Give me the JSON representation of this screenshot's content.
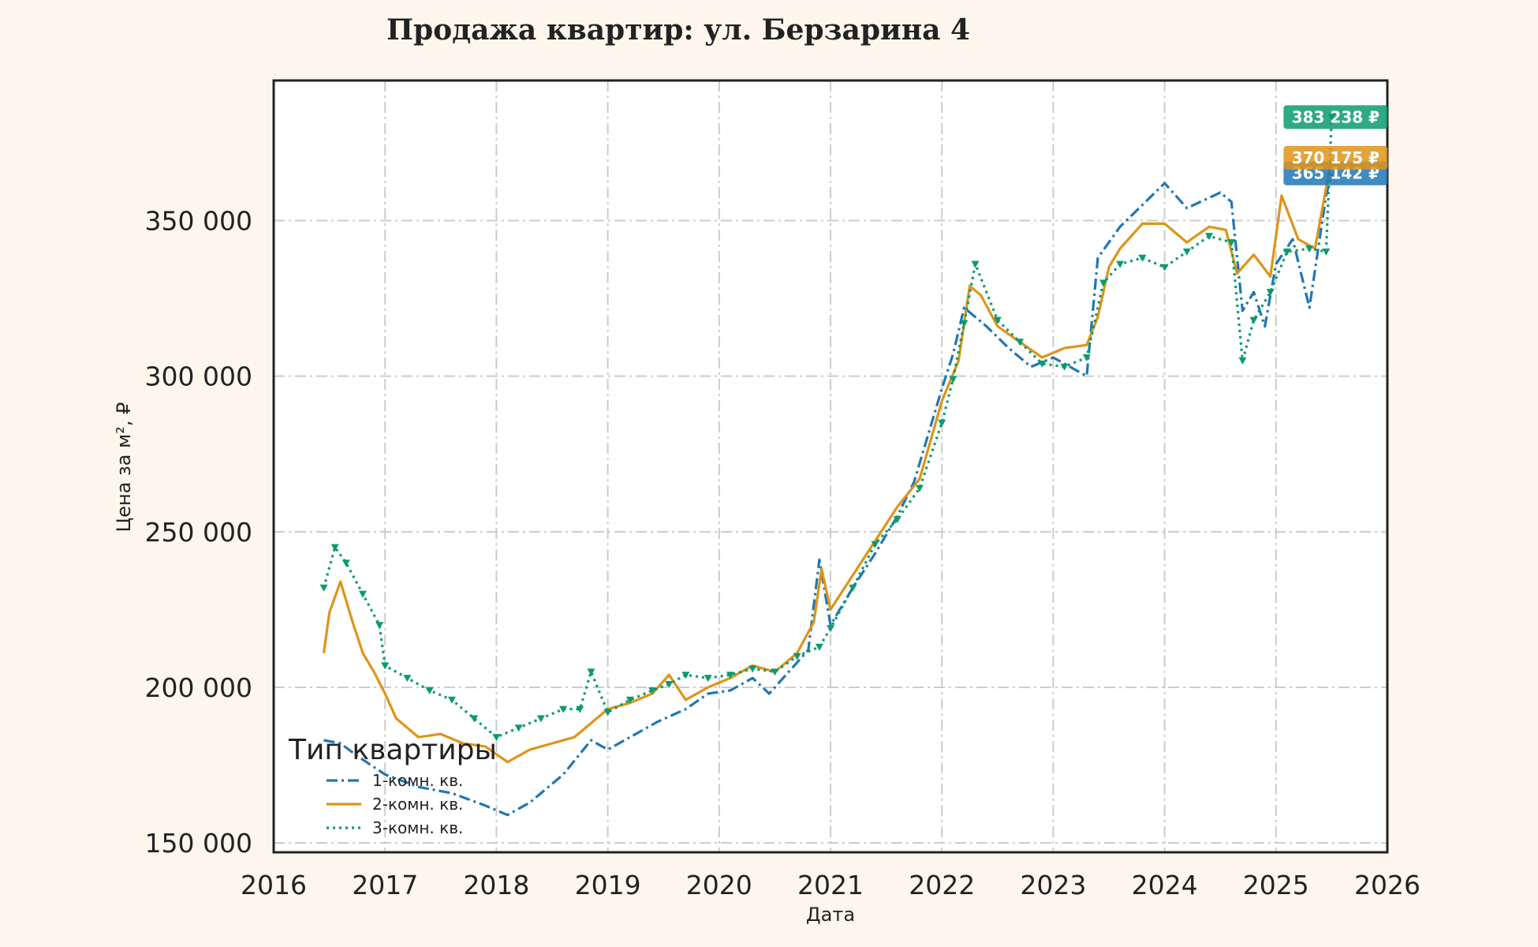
{
  "chart_data": {
    "type": "line",
    "title": "Продажа квартир: ул. Берзарина 4",
    "xlabel": "Дата",
    "ylabel": "Цена за м², ₽",
    "xlim": [
      2016,
      2026
    ],
    "ylim": [
      147000,
      395000
    ],
    "x_ticks": [
      "2016",
      "2017",
      "2018",
      "2019",
      "2020",
      "2021",
      "2022",
      "2023",
      "2024",
      "2025",
      "2026"
    ],
    "y_ticks": [
      "150 000",
      "200 000",
      "250 000",
      "300 000",
      "350 000"
    ],
    "y_tick_values": [
      150000,
      200000,
      250000,
      300000,
      350000
    ],
    "grid": true,
    "legend": {
      "title": "Тип квартиры",
      "placement": "lower-left"
    },
    "series": [
      {
        "name": "1-комн. кв.",
        "color": "#1f77b4",
        "style": "dashdot",
        "end_label": "365 142 ₽",
        "x": [
          2016.45,
          2016.6,
          2016.75,
          2017.0,
          2017.3,
          2017.6,
          2017.9,
          2018.1,
          2018.3,
          2018.6,
          2018.85,
          2019.0,
          2019.2,
          2019.45,
          2019.7,
          2019.9,
          2020.1,
          2020.3,
          2020.45,
          2020.6,
          2020.8,
          2020.9,
          2021.0,
          2021.2,
          2021.4,
          2021.6,
          2021.75,
          2021.9,
          2022.0,
          2022.1,
          2022.2,
          2022.4,
          2022.6,
          2022.8,
          2023.0,
          2023.3,
          2023.4,
          2023.6,
          2023.8,
          2024.0,
          2024.2,
          2024.5,
          2024.6,
          2024.7,
          2024.8,
          2024.9,
          2025.0,
          2025.15,
          2025.3,
          2025.45,
          2025.5
        ],
        "y": [
          183000,
          182000,
          178000,
          172000,
          168000,
          166000,
          162000,
          159000,
          163000,
          172000,
          183000,
          180000,
          184000,
          189000,
          193000,
          198000,
          199000,
          203000,
          198000,
          204000,
          212000,
          241000,
          220000,
          232000,
          243000,
          255000,
          266000,
          284000,
          296000,
          307000,
          322000,
          316000,
          309000,
          303000,
          306000,
          300000,
          338000,
          348000,
          355000,
          362000,
          354000,
          359000,
          356000,
          321000,
          327000,
          316000,
          336000,
          344000,
          322000,
          358000,
          365142
        ]
      },
      {
        "name": "2-комн. кв.",
        "color": "#de9419",
        "style": "solid",
        "end_label": "370 175 ₽",
        "x": [
          2016.45,
          2016.5,
          2016.6,
          2016.7,
          2016.8,
          2016.9,
          2017.0,
          2017.1,
          2017.3,
          2017.5,
          2017.7,
          2017.9,
          2018.1,
          2018.3,
          2018.5,
          2018.7,
          2018.9,
          2019.0,
          2019.2,
          2019.4,
          2019.55,
          2019.7,
          2019.9,
          2020.1,
          2020.3,
          2020.5,
          2020.7,
          2020.85,
          2020.92,
          2021.0,
          2021.2,
          2021.4,
          2021.6,
          2021.8,
          2022.0,
          2022.15,
          2022.25,
          2022.35,
          2022.5,
          2022.7,
          2022.9,
          2023.1,
          2023.3,
          2023.4,
          2023.5,
          2023.6,
          2023.8,
          2024.0,
          2024.2,
          2024.4,
          2024.55,
          2024.65,
          2024.8,
          2024.95,
          2025.05,
          2025.2,
          2025.35,
          2025.5
        ],
        "y": [
          211000,
          224000,
          234000,
          222000,
          211000,
          205000,
          198000,
          190000,
          184000,
          185000,
          182000,
          181000,
          176000,
          180000,
          182000,
          184000,
          190000,
          193000,
          195000,
          198000,
          204000,
          196000,
          200000,
          203000,
          207000,
          205000,
          211000,
          221000,
          238000,
          225000,
          236000,
          247000,
          258000,
          267000,
          292000,
          305000,
          329000,
          326000,
          316000,
          311000,
          306000,
          309000,
          310000,
          319000,
          335000,
          341000,
          349000,
          349000,
          343000,
          348000,
          347000,
          333000,
          339000,
          332000,
          358000,
          344000,
          341000,
          370175
        ]
      },
      {
        "name": "3-комн. кв.",
        "color": "#0a9b6e",
        "style": "dotted",
        "end_label": "383 238 ₽",
        "x": [
          2016.45,
          2016.55,
          2016.65,
          2016.8,
          2016.95,
          2017.0,
          2017.2,
          2017.4,
          2017.6,
          2017.8,
          2018.0,
          2018.2,
          2018.4,
          2018.6,
          2018.75,
          2018.85,
          2019.0,
          2019.2,
          2019.4,
          2019.55,
          2019.7,
          2019.9,
          2020.1,
          2020.3,
          2020.5,
          2020.7,
          2020.9,
          2021.0,
          2021.2,
          2021.4,
          2021.6,
          2021.8,
          2022.0,
          2022.1,
          2022.2,
          2022.3,
          2022.5,
          2022.7,
          2022.9,
          2023.1,
          2023.3,
          2023.45,
          2023.6,
          2023.8,
          2024.0,
          2024.2,
          2024.4,
          2024.6,
          2024.7,
          2024.8,
          2024.95,
          2025.1,
          2025.3,
          2025.45,
          2025.5
        ],
        "y": [
          232000,
          245000,
          240000,
          230000,
          220000,
          207000,
          203000,
          199000,
          196000,
          190000,
          184000,
          187000,
          190000,
          193000,
          193000,
          205000,
          192000,
          196000,
          199000,
          201000,
          204000,
          203000,
          204000,
          206000,
          205000,
          210000,
          213000,
          219000,
          232000,
          246000,
          254000,
          264000,
          285000,
          299000,
          317000,
          336000,
          318000,
          311000,
          304000,
          303000,
          306000,
          330000,
          336000,
          338000,
          335000,
          340000,
          345000,
          343000,
          305000,
          318000,
          327000,
          340000,
          341000,
          340000,
          383238
        ]
      }
    ]
  }
}
